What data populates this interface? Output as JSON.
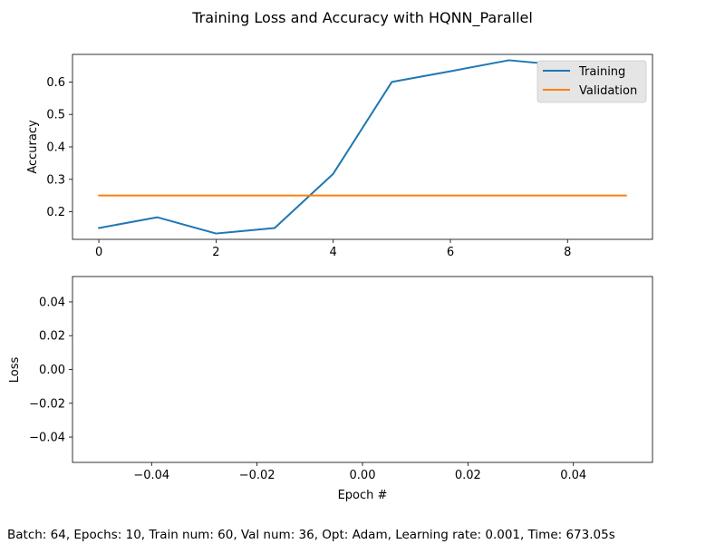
{
  "figure": {
    "suptitle": "Training Loss and Accuracy with HQNN_Parallel",
    "footer": "Batch: 64, Epochs: 10, Train num: 60, Val num: 36, Opt: Adam, Learning rate: 0.001, Time: 673.05s"
  },
  "colors": {
    "training": "#1f77b4",
    "validation": "#ff7f0e",
    "legend_bg": "#e5e5e5"
  },
  "chart_data": [
    {
      "type": "line",
      "ylabel": "Accuracy",
      "xlabel": "",
      "xlim": [
        -0.45,
        9.45
      ],
      "ylim": [
        0.115,
        0.685
      ],
      "xticks": [
        0,
        2,
        4,
        6,
        8
      ],
      "xtick_labels": [
        "0",
        "2",
        "4",
        "6",
        "8"
      ],
      "yticks": [
        0.2,
        0.3,
        0.4,
        0.5,
        0.6
      ],
      "ytick_labels": [
        "0.2",
        "0.3",
        "0.4",
        "0.5",
        "0.6"
      ],
      "legend_position": "top-right",
      "series": [
        {
          "name": "Training",
          "color": "#1f77b4",
          "x": [
            0,
            1,
            2,
            3,
            4,
            5,
            6,
            7,
            8,
            9
          ],
          "y": [
            0.15,
            0.183,
            0.133,
            0.15,
            0.317,
            0.6,
            0.633,
            0.667,
            0.65,
            0.65
          ]
        },
        {
          "name": "Validation",
          "color": "#ff7f0e",
          "x": [
            0,
            1,
            2,
            3,
            4,
            5,
            6,
            7,
            8,
            9
          ],
          "y": [
            0.25,
            0.25,
            0.25,
            0.25,
            0.25,
            0.25,
            0.25,
            0.25,
            0.25,
            0.25
          ]
        }
      ]
    },
    {
      "type": "line",
      "ylabel": "Loss",
      "xlabel": "Epoch #",
      "xlim": [
        -0.055,
        0.055
      ],
      "ylim": [
        -0.055,
        0.055
      ],
      "xticks": [
        -0.04,
        -0.02,
        0.0,
        0.02,
        0.04
      ],
      "xtick_labels": [
        "−0.04",
        "−0.02",
        "0.00",
        "0.02",
        "0.04"
      ],
      "yticks": [
        -0.04,
        -0.02,
        0.0,
        0.02,
        0.04
      ],
      "ytick_labels": [
        "−0.04",
        "−0.02",
        "0.00",
        "0.02",
        "0.04"
      ],
      "series": []
    }
  ]
}
